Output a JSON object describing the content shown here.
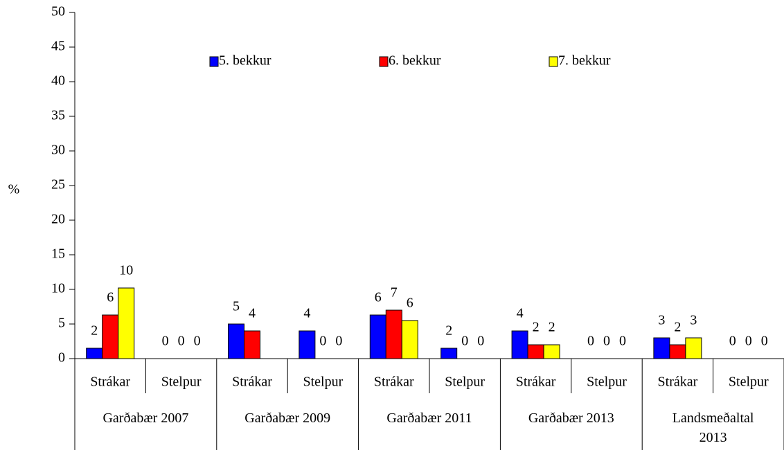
{
  "chart_data": {
    "type": "bar",
    "y_label": "%",
    "groups": [
      "Garðabær 2007",
      "Garðabær 2009",
      "Garðabær 2011",
      "Garðabær 2013",
      "Landsmeðaltal 2013"
    ],
    "categories": [
      "Strákar",
      "Stelpur",
      "Strákar",
      "Stelpur",
      "Strákar",
      "Stelpur",
      "Strákar",
      "Stelpur",
      "Strákar",
      "Stelpur"
    ],
    "series": [
      {
        "name": "5. bekkur",
        "color": "#0000ff",
        "values": [
          1.5,
          0,
          5,
          4,
          6.3,
          1.5,
          4,
          0,
          3,
          0
        ],
        "value_labels": [
          "2",
          "0",
          "5",
          "4",
          "6",
          "2",
          "4",
          "0",
          "3",
          "0"
        ]
      },
      {
        "name": "6. bekkur",
        "color": "#ff0000",
        "values": [
          6.3,
          0,
          4,
          0,
          7,
          0,
          2,
          0,
          2,
          0
        ],
        "value_labels": [
          "6",
          "0",
          "4",
          "0",
          "7",
          "0",
          "2",
          "0",
          "2",
          "0"
        ]
      },
      {
        "name": "7. bekkur",
        "color": "#ffff00",
        "values": [
          10.2,
          0,
          0,
          0,
          5.5,
          0,
          2,
          0,
          3,
          0
        ],
        "value_labels": [
          "10",
          "0",
          "",
          "0",
          "6",
          "0",
          "2",
          "0",
          "3",
          "0"
        ]
      }
    ],
    "ylim": [
      0,
      50
    ],
    "yticks": [
      0,
      5,
      10,
      15,
      20,
      25,
      30,
      35,
      40,
      45,
      50
    ],
    "legend": "top",
    "grid": false
  }
}
